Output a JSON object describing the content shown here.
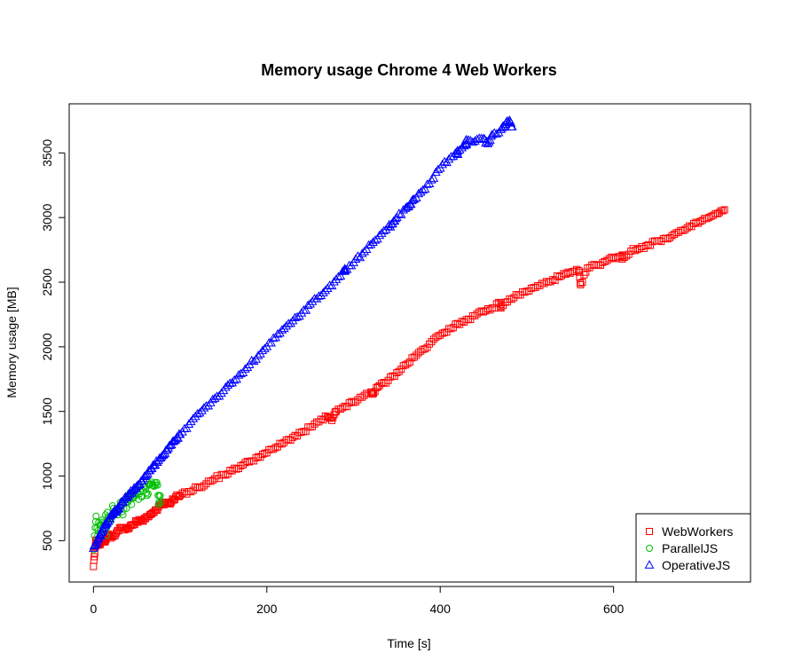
{
  "chart_data": {
    "type": "scatter",
    "title": "Memory usage Chrome 4 Web Workers",
    "xlabel": "Time [s]",
    "ylabel": "Memory usage [MB]",
    "xlim": [
      -28,
      758
    ],
    "ylim": [
      180,
      3880
    ],
    "x_ticks": [
      0,
      200,
      400,
      600
    ],
    "y_ticks": [
      500,
      1000,
      1500,
      2000,
      2500,
      3000,
      3500
    ],
    "grid": false,
    "legend_position": "bottom-right",
    "series": [
      {
        "name": "WebWorkers",
        "marker": "square",
        "color": "#ff0000",
        "x_range": [
          0,
          728
        ],
        "points": [
          [
            0,
            300
          ],
          [
            2,
            450
          ],
          [
            3,
            505
          ],
          [
            5,
            480
          ],
          [
            7,
            470
          ],
          [
            10,
            500
          ],
          [
            13,
            490
          ],
          [
            16,
            545
          ],
          [
            20,
            520
          ],
          [
            25,
            540
          ],
          [
            30,
            600
          ],
          [
            35,
            600
          ],
          [
            40,
            590
          ],
          [
            45,
            620
          ],
          [
            50,
            650
          ],
          [
            55,
            660
          ],
          [
            60,
            670
          ],
          [
            65,
            700
          ],
          [
            70,
            720
          ],
          [
            75,
            760
          ],
          [
            80,
            780
          ],
          [
            85,
            790
          ],
          [
            90,
            800
          ],
          [
            95,
            840
          ],
          [
            100,
            850
          ],
          [
            110,
            880
          ],
          [
            120,
            910
          ],
          [
            130,
            940
          ],
          [
            140,
            980
          ],
          [
            150,
            1010
          ],
          [
            160,
            1040
          ],
          [
            170,
            1080
          ],
          [
            180,
            1110
          ],
          [
            190,
            1150
          ],
          [
            200,
            1180
          ],
          [
            210,
            1220
          ],
          [
            220,
            1260
          ],
          [
            230,
            1300
          ],
          [
            240,
            1340
          ],
          [
            250,
            1380
          ],
          [
            260,
            1420
          ],
          [
            270,
            1460
          ],
          [
            280,
            1500
          ],
          [
            290,
            1540
          ],
          [
            300,
            1570
          ],
          [
            310,
            1610
          ],
          [
            320,
            1650
          ],
          [
            330,
            1700
          ],
          [
            340,
            1740
          ],
          [
            350,
            1800
          ],
          [
            360,
            1860
          ],
          [
            370,
            1920
          ],
          [
            380,
            1980
          ],
          [
            390,
            2040
          ],
          [
            400,
            2090
          ],
          [
            410,
            2140
          ],
          [
            420,
            2180
          ],
          [
            430,
            2210
          ],
          [
            440,
            2240
          ],
          [
            450,
            2270
          ],
          [
            460,
            2300
          ],
          [
            470,
            2340
          ],
          [
            480,
            2370
          ],
          [
            490,
            2400
          ],
          [
            500,
            2430
          ],
          [
            510,
            2460
          ],
          [
            520,
            2490
          ],
          [
            530,
            2520
          ],
          [
            540,
            2550
          ],
          [
            550,
            2570
          ],
          [
            560,
            2590
          ],
          [
            570,
            2610
          ],
          [
            580,
            2630
          ],
          [
            590,
            2660
          ],
          [
            600,
            2690
          ],
          [
            610,
            2710
          ],
          [
            620,
            2740
          ],
          [
            630,
            2760
          ],
          [
            640,
            2790
          ],
          [
            650,
            2820
          ],
          [
            660,
            2840
          ],
          [
            670,
            2870
          ],
          [
            680,
            2900
          ],
          [
            690,
            2930
          ],
          [
            700,
            2970
          ],
          [
            710,
            3000
          ],
          [
            720,
            3030
          ],
          [
            728,
            3060
          ],
          [
            562,
            2480
          ],
          [
            610,
            2680
          ],
          [
            470,
            2300
          ],
          [
            275,
            1430
          ],
          [
            323,
            1640
          ]
        ]
      },
      {
        "name": "ParallelJS",
        "marker": "circle",
        "color": "#00c000",
        "x_range": [
          0,
          78
        ],
        "points": [
          [
            0,
            430
          ],
          [
            2,
            600
          ],
          [
            3,
            690
          ],
          [
            5,
            540
          ],
          [
            6,
            640
          ],
          [
            8,
            580
          ],
          [
            10,
            660
          ],
          [
            12,
            620
          ],
          [
            14,
            700
          ],
          [
            15,
            540
          ],
          [
            16,
            720
          ],
          [
            18,
            680
          ],
          [
            20,
            650
          ],
          [
            22,
            770
          ],
          [
            24,
            720
          ],
          [
            26,
            740
          ],
          [
            28,
            700
          ],
          [
            30,
            760
          ],
          [
            32,
            780
          ],
          [
            34,
            700
          ],
          [
            36,
            820
          ],
          [
            38,
            750
          ],
          [
            40,
            800
          ],
          [
            42,
            870
          ],
          [
            44,
            780
          ],
          [
            46,
            830
          ],
          [
            48,
            850
          ],
          [
            50,
            900
          ],
          [
            52,
            820
          ],
          [
            54,
            880
          ],
          [
            56,
            840
          ],
          [
            58,
            920
          ],
          [
            60,
            900
          ],
          [
            62,
            850
          ],
          [
            64,
            930
          ],
          [
            66,
            940
          ],
          [
            68,
            930
          ],
          [
            70,
            920
          ],
          [
            72,
            930
          ],
          [
            74,
            930
          ],
          [
            76,
            850
          ],
          [
            78,
            800
          ],
          [
            75,
            780
          ]
        ]
      },
      {
        "name": "OperativeJS",
        "marker": "triangle",
        "color": "#0000ff",
        "x_range": [
          0,
          483
        ],
        "points": [
          [
            0,
            440
          ],
          [
            3,
            480
          ],
          [
            6,
            520
          ],
          [
            9,
            560
          ],
          [
            12,
            600
          ],
          [
            15,
            640
          ],
          [
            18,
            670
          ],
          [
            21,
            700
          ],
          [
            24,
            720
          ],
          [
            27,
            740
          ],
          [
            30,
            770
          ],
          [
            34,
            800
          ],
          [
            38,
            830
          ],
          [
            42,
            860
          ],
          [
            46,
            890
          ],
          [
            50,
            920
          ],
          [
            55,
            960
          ],
          [
            60,
            1000
          ],
          [
            65,
            1040
          ],
          [
            70,
            1080
          ],
          [
            75,
            1120
          ],
          [
            80,
            1160
          ],
          [
            85,
            1200
          ],
          [
            90,
            1240
          ],
          [
            95,
            1280
          ],
          [
            100,
            1320
          ],
          [
            110,
            1400
          ],
          [
            120,
            1480
          ],
          [
            130,
            1540
          ],
          [
            140,
            1600
          ],
          [
            150,
            1660
          ],
          [
            160,
            1720
          ],
          [
            170,
            1790
          ],
          [
            180,
            1860
          ],
          [
            190,
            1930
          ],
          [
            200,
            2000
          ],
          [
            210,
            2070
          ],
          [
            220,
            2140
          ],
          [
            230,
            2200
          ],
          [
            240,
            2260
          ],
          [
            250,
            2330
          ],
          [
            260,
            2390
          ],
          [
            270,
            2450
          ],
          [
            280,
            2520
          ],
          [
            290,
            2590
          ],
          [
            300,
            2650
          ],
          [
            310,
            2720
          ],
          [
            320,
            2790
          ],
          [
            330,
            2860
          ],
          [
            340,
            2930
          ],
          [
            350,
            3000
          ],
          [
            360,
            3070
          ],
          [
            370,
            3140
          ],
          [
            380,
            3210
          ],
          [
            390,
            3290
          ],
          [
            400,
            3380
          ],
          [
            410,
            3450
          ],
          [
            420,
            3510
          ],
          [
            430,
            3560
          ],
          [
            440,
            3590
          ],
          [
            450,
            3610
          ],
          [
            460,
            3640
          ],
          [
            470,
            3680
          ],
          [
            475,
            3720
          ],
          [
            480,
            3750
          ],
          [
            483,
            3700
          ],
          [
            455,
            3570
          ],
          [
            430,
            3600
          ],
          [
            345,
            2950
          ],
          [
            365,
            3100
          ],
          [
            420,
            3490
          ],
          [
            290,
            2590
          ]
        ]
      }
    ]
  }
}
